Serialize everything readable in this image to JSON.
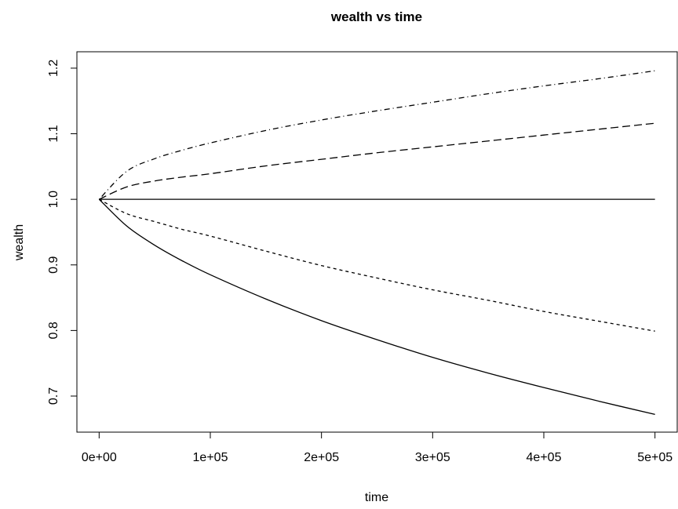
{
  "chart_data": {
    "type": "line",
    "title": "wealth vs time",
    "xlabel": "time",
    "ylabel": "wealth",
    "xlim": [
      -20000,
      520000
    ],
    "ylim": [
      0.645,
      1.225
    ],
    "xticks": [
      {
        "value": 0,
        "label": "0e+00"
      },
      {
        "value": 100000,
        "label": "1e+05"
      },
      {
        "value": 200000,
        "label": "2e+05"
      },
      {
        "value": 300000,
        "label": "3e+05"
      },
      {
        "value": 400000,
        "label": "4e+05"
      },
      {
        "value": 500000,
        "label": "5e+05"
      }
    ],
    "yticks": [
      {
        "value": 0.7,
        "label": "0.7"
      },
      {
        "value": 0.8,
        "label": "0.8"
      },
      {
        "value": 0.9,
        "label": "0.9"
      },
      {
        "value": 1.0,
        "label": "1.0"
      },
      {
        "value": 1.1,
        "label": "1.1"
      },
      {
        "value": 1.2,
        "label": "1.2"
      }
    ],
    "grid": false,
    "legend": "none",
    "series": [
      {
        "line_style": "dotdash",
        "color": "#000000",
        "x": [
          0,
          25000,
          50000,
          75000,
          100000,
          150000,
          200000,
          250000,
          300000,
          350000,
          400000,
          450000,
          500000
        ],
        "y": [
          1.0,
          1.043,
          1.062,
          1.075,
          1.086,
          1.105,
          1.121,
          1.135,
          1.148,
          1.161,
          1.173,
          1.184,
          1.196
        ]
      },
      {
        "line_style": "longdash",
        "color": "#000000",
        "x": [
          0,
          25000,
          50000,
          75000,
          100000,
          150000,
          200000,
          250000,
          300000,
          350000,
          400000,
          450000,
          500000
        ],
        "y": [
          1.0,
          1.019,
          1.028,
          1.034,
          1.039,
          1.051,
          1.061,
          1.071,
          1.08,
          1.089,
          1.098,
          1.107,
          1.116
        ]
      },
      {
        "line_style": "solid",
        "color": "#000000",
        "x": [
          0,
          500000
        ],
        "y": [
          1.0,
          1.0
        ]
      },
      {
        "line_style": "dashed",
        "color": "#000000",
        "x": [
          0,
          25000,
          50000,
          75000,
          100000,
          150000,
          200000,
          250000,
          300000,
          350000,
          400000,
          450000,
          500000
        ],
        "y": [
          1.0,
          0.978,
          0.966,
          0.954,
          0.944,
          0.921,
          0.899,
          0.88,
          0.862,
          0.846,
          0.829,
          0.814,
          0.799
        ]
      },
      {
        "line_style": "solid",
        "color": "#000000",
        "x": [
          0,
          25000,
          50000,
          75000,
          100000,
          150000,
          200000,
          250000,
          300000,
          350000,
          400000,
          450000,
          500000
        ],
        "y": [
          1.0,
          0.959,
          0.93,
          0.906,
          0.885,
          0.848,
          0.815,
          0.786,
          0.759,
          0.735,
          0.713,
          0.692,
          0.672
        ]
      }
    ]
  }
}
